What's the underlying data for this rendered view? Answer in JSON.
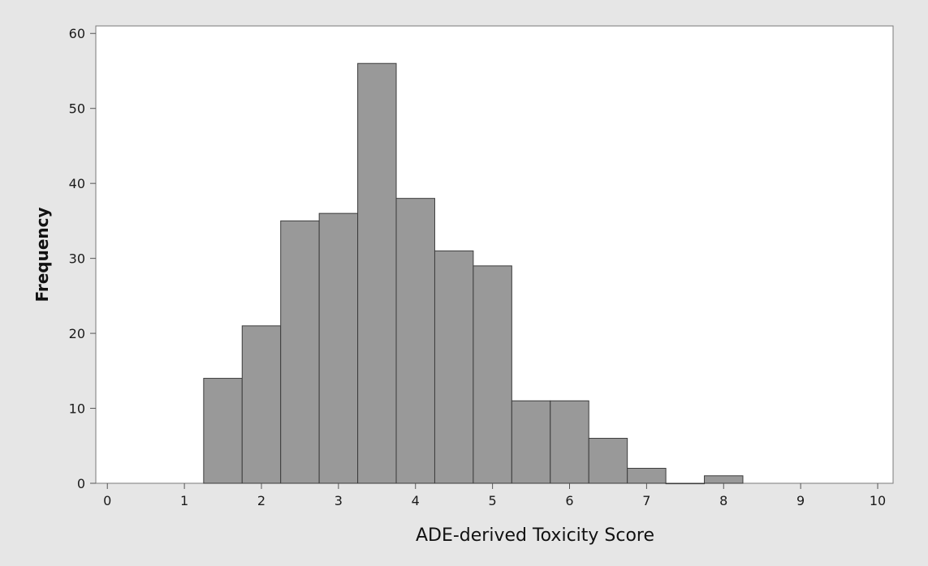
{
  "chart_data": {
    "type": "bar",
    "subtype": "histogram",
    "title": "",
    "xlabel": "ADE-derived Toxicity Score",
    "ylabel": "Frequency",
    "xlim": [
      -0.15,
      10.2
    ],
    "ylim": [
      0,
      61
    ],
    "bin_width": 0.5,
    "bin_edges": [
      1.25,
      1.75,
      2.25,
      2.75,
      3.25,
      3.75,
      4.25,
      4.75,
      5.25,
      5.75,
      6.25,
      6.75,
      7.25,
      7.75,
      8.25
    ],
    "values": [
      14,
      21,
      35,
      36,
      56,
      38,
      31,
      29,
      11,
      11,
      6,
      2,
      0,
      1
    ],
    "x_ticks": [
      0,
      1,
      2,
      3,
      4,
      5,
      6,
      7,
      8,
      9,
      10
    ],
    "y_ticks": [
      0,
      10,
      20,
      30,
      40,
      50,
      60
    ],
    "grid": false,
    "legend": "none",
    "colors": {
      "bar_fill": "#999999",
      "bar_stroke": "#3c3c3c",
      "plot_background": "#ffffff",
      "figure_background": "#e6e6e6",
      "axis": "#7a7a7a"
    }
  }
}
